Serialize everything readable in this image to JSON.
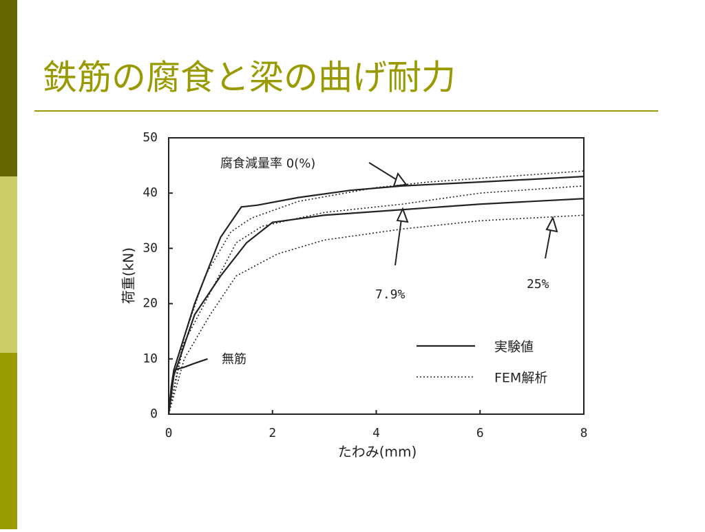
{
  "slide": {
    "title": "鉄筋の腐食と梁の曲げ耐力"
  },
  "chart_data": {
    "type": "line",
    "x_label": "たわみ(mm)",
    "y_label": "荷重(kN)",
    "xlim": [
      0,
      8
    ],
    "xticks": [
      0,
      2,
      4,
      6,
      8
    ],
    "ylim": [
      0,
      50
    ],
    "yticks": [
      0,
      10,
      20,
      30,
      40,
      50
    ],
    "legend": [
      {
        "label": "実験値",
        "style": "solid"
      },
      {
        "label": "FEM解析",
        "style": "dotted"
      }
    ],
    "annotations": [
      "腐食減量率 0(%)",
      "7.9%",
      "25%",
      "無筋"
    ],
    "series": [
      {
        "style": "solid",
        "color": "#222222",
        "x": [
          0,
          0.1,
          0.5,
          1.0,
          1.4,
          1.7,
          2.5,
          3.5,
          4.5,
          6,
          8
        ],
        "values": [
          0,
          8,
          20,
          32,
          37.5,
          37.8,
          39.2,
          40.5,
          41.3,
          42,
          43
        ]
      },
      {
        "style": "dotted",
        "color": "#222222",
        "x": [
          0,
          0.3,
          0.7,
          1.2,
          1.6,
          2.5,
          4,
          5,
          6.5,
          8
        ],
        "values": [
          0,
          14,
          25,
          33,
          35.5,
          38.5,
          41,
          42,
          43,
          44
        ]
      },
      {
        "style": "solid",
        "color": "#222222",
        "x": [
          0,
          0.1,
          0.5,
          1.0,
          1.5,
          2,
          3,
          4.5,
          6,
          8
        ],
        "values": [
          0,
          7,
          18,
          25,
          31,
          34.7,
          36,
          37,
          38,
          39
        ]
      },
      {
        "style": "dotted",
        "color": "#222222",
        "x": [
          0,
          0.3,
          0.8,
          1.3,
          1.8,
          3,
          4.5,
          6,
          8
        ],
        "values": [
          0,
          13,
          22,
          31,
          34,
          36.5,
          38,
          40,
          41.3
        ]
      },
      {
        "style": "dotted",
        "color": "#222222",
        "x": [
          0,
          0.3,
          0.8,
          1.3,
          1.6,
          2.1,
          3,
          4.5,
          6,
          8
        ],
        "values": [
          0,
          10,
          18,
          25,
          26.5,
          29,
          31.5,
          33.5,
          35,
          36
        ]
      },
      {
        "style": "solid",
        "color": "#222222",
        "x": [
          0,
          0.05,
          0.1,
          0.3,
          0.5,
          0.75
        ],
        "values": [
          0,
          5,
          8,
          8.5,
          9.2,
          10
        ]
      }
    ]
  }
}
